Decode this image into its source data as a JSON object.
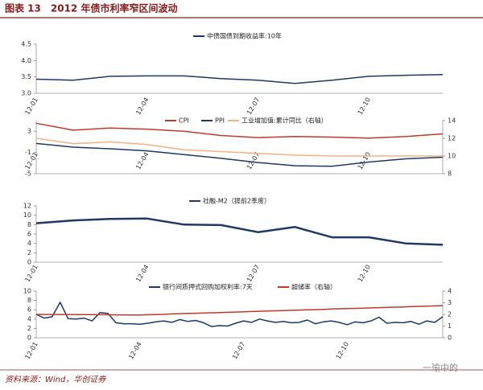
{
  "header": {
    "title": "图表 13　2012 年债市利率窄区间波动"
  },
  "source": "资料来源：Wind，华创证券",
  "watermark": "一瑜中的",
  "chart_data": [
    {
      "type": "line",
      "categories": [
        "12-01",
        null,
        null,
        "12-04",
        null,
        null,
        "12-07",
        null,
        null,
        "12-10",
        null,
        null
      ],
      "series": [
        {
          "name": "中债国债到期收益率:10年",
          "color": "#1f3864",
          "values": [
            3.43,
            3.4,
            3.52,
            3.53,
            3.53,
            3.45,
            3.4,
            3.3,
            3.4,
            3.52,
            3.55,
            3.57
          ]
        }
      ],
      "ylim": [
        3.0,
        4.5
      ],
      "yticks": [
        {
          "value": 3,
          "label": "3.0"
        },
        {
          "value": 3.5,
          "label": "3.5"
        },
        {
          "value": 4,
          "label": "4.0"
        },
        {
          "value": 4.5,
          "label": "4.5"
        }
      ]
    },
    {
      "type": "line",
      "categories": [
        "12-01",
        null,
        null,
        "12-04",
        null,
        null,
        "12-07",
        null,
        null,
        "12-10",
        null,
        null
      ],
      "series": [
        {
          "name": "CPI",
          "color": "#c0392b",
          "values": [
            4.5,
            3.2,
            3.6,
            3.4,
            3.0,
            2.2,
            1.8,
            2.0,
            1.9,
            1.7,
            2.0,
            2.5
          ]
        },
        {
          "name": "PPI",
          "color": "#1f3864",
          "values": [
            0.7,
            0.0,
            -0.3,
            -0.7,
            -1.4,
            -2.1,
            -2.9,
            -3.5,
            -3.6,
            -2.8,
            -2.2,
            -1.9
          ]
        },
        {
          "name": "工业增加值:累计同比（右轴）",
          "color": "#f4b183",
          "axis": "y2",
          "values": [
            12.0,
            11.4,
            11.6,
            11.3,
            10.7,
            10.5,
            10.3,
            10.1,
            10.0,
            10.0,
            10.0,
            10.0
          ]
        }
      ],
      "ylim": [
        -5,
        5
      ],
      "yticks": [
        3,
        -1,
        -5
      ],
      "y2lim": [
        8,
        14
      ],
      "y2ticks": [
        8,
        10,
        12,
        14
      ]
    },
    {
      "type": "line",
      "categories": [
        "12-01",
        null,
        null,
        "12-04",
        null,
        null,
        "12-07",
        null,
        null,
        "12-10",
        null,
        null
      ],
      "series": [
        {
          "name": "社融-M2（提前2季度）",
          "color": "#1f3864",
          "values": [
            8.3,
            8.9,
            9.2,
            9.3,
            8.0,
            7.9,
            6.4,
            7.5,
            5.3,
            5.3,
            4.0,
            3.7
          ]
        }
      ],
      "ylim": [
        0,
        12
      ],
      "yticks": [
        0,
        2,
        4,
        6,
        8,
        10,
        12
      ]
    },
    {
      "type": "line",
      "categories": [
        "12-01",
        null,
        null,
        null,
        null,
        null,
        null,
        null,
        null,
        null,
        null,
        null,
        null,
        "12-04",
        null,
        null,
        null,
        null,
        null,
        null,
        null,
        null,
        null,
        null,
        null,
        null,
        "12-07",
        null,
        null,
        null,
        null,
        null,
        null,
        null,
        null,
        null,
        null,
        null,
        null,
        "12-10",
        null,
        null,
        null,
        null,
        null,
        null,
        null,
        null,
        null,
        null,
        null,
        null
      ],
      "series": [
        {
          "name": "银行间质押式回购加权利率:7天",
          "color": "#1f3864",
          "values": [
            5.0,
            4.2,
            4.5,
            7.6,
            4.1,
            4.0,
            4.2,
            3.6,
            5.4,
            5.2,
            3.2,
            3.0,
            3.0,
            2.9,
            3.1,
            3.4,
            3.6,
            3.3,
            3.9,
            3.5,
            3.7,
            3.2,
            2.4,
            2.6,
            2.5,
            3.1,
            3.6,
            3.3,
            4.0,
            3.6,
            3.3,
            3.5,
            3.2,
            3.3,
            3.8,
            3.0,
            3.4,
            3.6,
            3.3,
            2.8,
            3.4,
            3.2,
            3.6,
            4.4,
            3.1,
            3.3,
            3.2,
            3.5,
            2.9,
            3.6,
            3.3,
            4.5
          ]
        },
        {
          "name": "超储率（右轴）",
          "color": "#c0392b",
          "axis": "y2",
          "values": [
            2.0,
            2.0,
            1.99,
            1.99,
            1.99,
            1.98,
            1.98,
            1.98,
            1.97,
            1.97,
            1.96,
            1.96,
            1.95,
            1.95,
            1.97,
            1.99,
            2.01,
            2.04,
            2.06,
            2.08,
            2.1,
            2.12,
            2.14,
            2.16,
            2.18,
            2.2,
            2.22,
            2.25,
            2.27,
            2.29,
            2.31,
            2.33,
            2.35,
            2.37,
            2.39,
            2.41,
            2.43,
            2.46,
            2.48,
            2.5,
            2.52,
            2.54,
            2.56,
            2.58,
            2.6,
            2.62,
            2.64,
            2.67,
            2.69,
            2.71,
            2.73,
            2.75
          ]
        }
      ],
      "ylim": [
        0,
        10
      ],
      "yticks": [
        0,
        2,
        4,
        6,
        8,
        10
      ],
      "y2lim": [
        0,
        4
      ],
      "y2ticks": [
        0,
        1,
        2,
        3,
        4
      ]
    }
  ]
}
